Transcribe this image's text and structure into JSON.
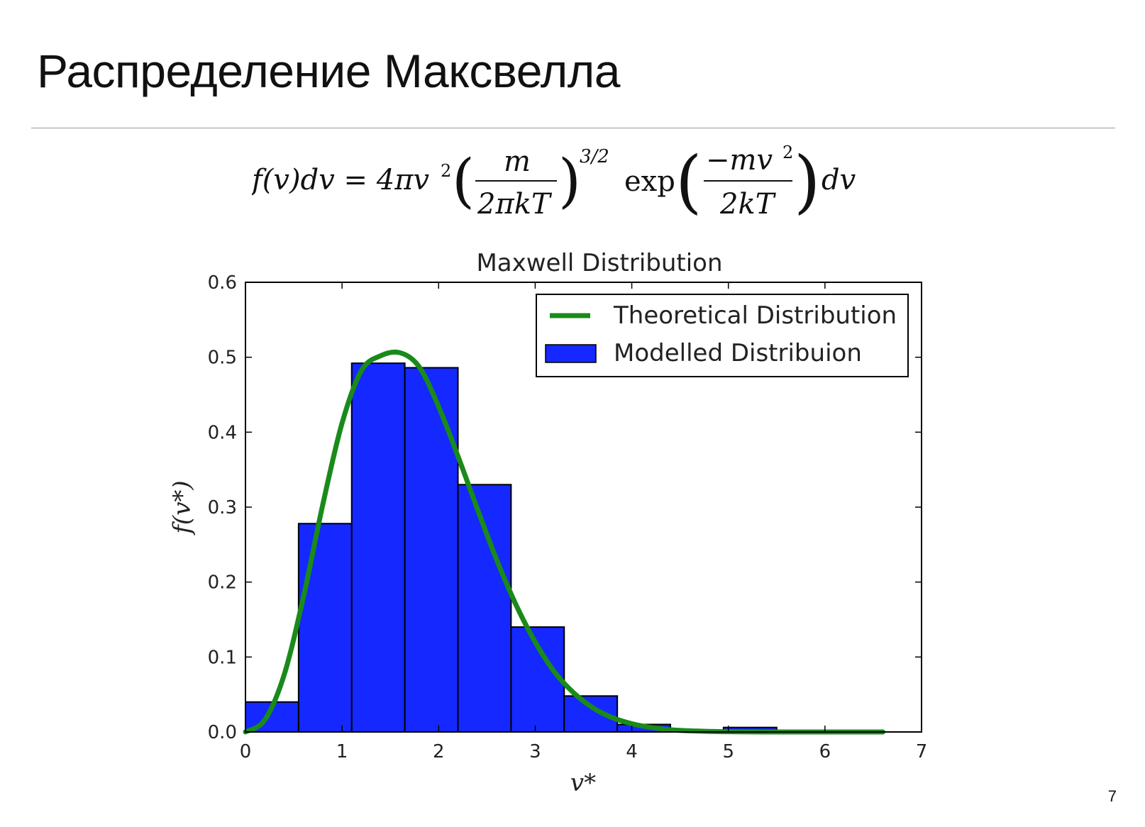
{
  "slide": {
    "title": "Распределение Максвелла",
    "page_number": "7"
  },
  "formula": {
    "lhs": "f(v)dv = 4πv",
    "sq": "2",
    "frac1_num": "m",
    "frac1_den": "2πkT",
    "power": "3/2",
    "exp": "exp",
    "frac2_num": "−mv",
    "frac2_num_sq": "2",
    "frac2_den": "2kT",
    "tail": "dv"
  },
  "chart_data": {
    "type": "bar",
    "title": "Maxwell Distribution",
    "xlabel": "v*",
    "ylabel": "f(v*)",
    "xlim": [
      0,
      7
    ],
    "ylim": [
      0,
      0.6
    ],
    "xticks": [
      0,
      1,
      2,
      3,
      4,
      5,
      6,
      7
    ],
    "yticks": [
      0.0,
      0.1,
      0.2,
      0.3,
      0.4,
      0.5,
      0.6
    ],
    "grid": false,
    "legend_position": "top-right",
    "colors": {
      "bars": "#1428ff",
      "curve": "#1a8a1a"
    },
    "histogram": {
      "name": "Modelled Distribuion",
      "bins": [
        {
          "x0": 0.0,
          "x1": 0.55,
          "value": 0.04
        },
        {
          "x0": 0.55,
          "x1": 1.1,
          "value": 0.278
        },
        {
          "x0": 1.1,
          "x1": 1.65,
          "value": 0.492
        },
        {
          "x0": 1.65,
          "x1": 2.2,
          "value": 0.486
        },
        {
          "x0": 2.2,
          "x1": 2.75,
          "value": 0.33
        },
        {
          "x0": 2.75,
          "x1": 3.3,
          "value": 0.14
        },
        {
          "x0": 3.3,
          "x1": 3.85,
          "value": 0.048
        },
        {
          "x0": 3.85,
          "x1": 4.4,
          "value": 0.01
        },
        {
          "x0": 4.4,
          "x1": 4.95,
          "value": 0.002
        },
        {
          "x0": 4.95,
          "x1": 5.5,
          "value": 0.006
        },
        {
          "x0": 5.5,
          "x1": 6.05,
          "value": 0.0
        },
        {
          "x0": 6.05,
          "x1": 6.6,
          "value": 0.001
        }
      ]
    },
    "curve": {
      "name": "Theoretical Distribution",
      "x": [
        0,
        0.2,
        0.4,
        0.6,
        0.8,
        1.0,
        1.2,
        1.4,
        1.6,
        1.8,
        2.0,
        2.2,
        2.4,
        2.6,
        2.8,
        3.0,
        3.2,
        3.4,
        3.6,
        3.8,
        4.0,
        4.2,
        4.4,
        4.6,
        4.8,
        5.0,
        5.4,
        5.8,
        6.2,
        6.6
      ],
      "y": [
        0.0,
        0.016,
        0.076,
        0.18,
        0.303,
        0.412,
        0.482,
        0.502,
        0.506,
        0.487,
        0.434,
        0.368,
        0.298,
        0.23,
        0.17,
        0.12,
        0.08,
        0.052,
        0.032,
        0.019,
        0.011,
        0.006,
        0.003,
        0.0015,
        0.0007,
        0.0003,
        0.0,
        0.0,
        0.0,
        0.0
      ]
    }
  }
}
